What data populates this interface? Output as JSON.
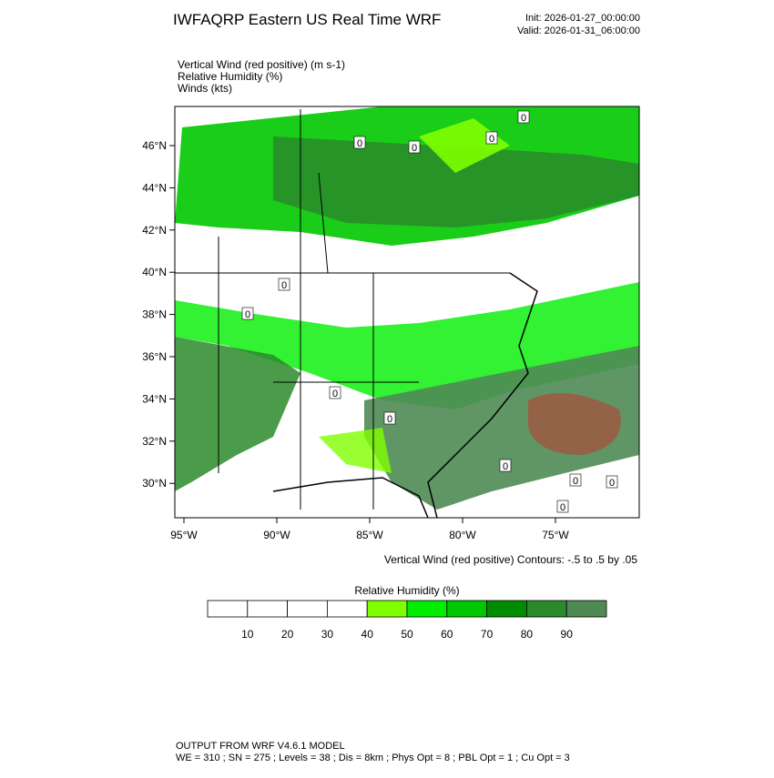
{
  "header": {
    "title": "IWFAQRP Eastern US Real Time WRF",
    "init": "Init: 2026-01-27_00:00:00",
    "valid": "Valid: 2026-01-31_06:00:00"
  },
  "fields": [
    "Vertical Wind (red positive)   (m s-1)",
    "Relative Humidity   (%)",
    "Winds   (kts)"
  ],
  "map": {
    "lat_labels": [
      "46°N",
      "44°N",
      "42°N",
      "40°N",
      "38°N",
      "36°N",
      "34°N",
      "32°N",
      "30°N"
    ],
    "lon_labels": [
      "95°W",
      "90°W",
      "85°W",
      "80°W",
      "75°W"
    ],
    "contour_labels": [
      "0",
      "0",
      "0",
      "0",
      "0",
      "0",
      "0",
      "0",
      "0",
      "0",
      "0",
      "0"
    ],
    "contour_note": "Vertical Wind (red positive) Contours: -.5 to .5 by .05"
  },
  "colorbar": {
    "title": "Relative Humidity   (%)",
    "labels": [
      "10",
      "20",
      "30",
      "40",
      "50",
      "60",
      "70",
      "80",
      "90"
    ],
    "colors": [
      "#ffffff",
      "#ffffff",
      "#ffffff",
      "#ffffff",
      "#80ff00",
      "#00ee00",
      "#00c800",
      "#008c00",
      "#2a8a2a",
      "#4f8a55"
    ]
  },
  "footer": [
    "OUTPUT FROM WRF V4.6.1 MODEL",
    "WE = 310 ; SN = 275 ; Levels = 38 ; Dis = 8km ; Phys Opt = 8 ; PBL Opt = 1 ; Cu Opt = 3"
  ]
}
